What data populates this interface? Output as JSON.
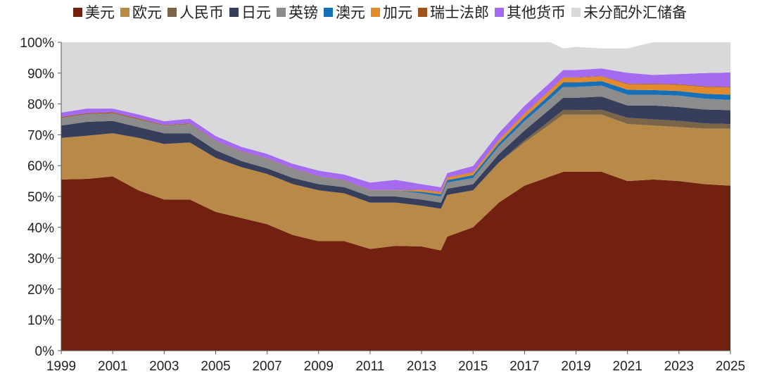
{
  "chart_data": {
    "type": "area",
    "stacked": true,
    "percent_scale": true,
    "title": "",
    "xlabel": "",
    "ylabel": "",
    "ylim": [
      0,
      100
    ],
    "xlim": [
      1999,
      2025
    ],
    "x_ticks": [
      1999,
      2001,
      2003,
      2005,
      2007,
      2009,
      2011,
      2013,
      2015,
      2017,
      2019,
      2021,
      2023,
      2025
    ],
    "x_tick_labels": [
      "1999",
      "2001",
      "2003",
      "2005",
      "2007",
      "2009",
      "2011",
      "2013",
      "2015",
      "2017",
      "2019",
      "2021",
      "2023",
      "2025"
    ],
    "y_ticks": [
      0,
      10,
      20,
      30,
      40,
      50,
      60,
      70,
      80,
      90,
      100
    ],
    "y_tick_labels": [
      "0%",
      "10%",
      "20%",
      "30%",
      "40%",
      "50%",
      "60%",
      "70%",
      "80%",
      "90%",
      "100%"
    ],
    "grid": false,
    "legend_position": "top",
    "x": [
      1999,
      2000,
      2001,
      2002,
      2003,
      2004,
      2005,
      2006,
      2007,
      2008,
      2009,
      2010,
      2011,
      2012,
      2013,
      2013.75,
      2014,
      2015,
      2016,
      2017,
      2018,
      2018.5,
      2019,
      2020,
      2021,
      2022,
      2023,
      2024,
      2025
    ],
    "series": [
      {
        "name": "美元",
        "color": "#722010",
        "values": [
          55.5,
          55.7,
          56.5,
          52.0,
          49.0,
          49.0,
          45.0,
          43.0,
          41.0,
          37.5,
          35.5,
          35.5,
          33.0,
          34.0,
          33.8,
          32.5,
          37.0,
          40.0,
          48.0,
          53.5,
          56.5,
          58.0,
          58.0,
          58.0,
          55.0,
          55.5,
          55.0,
          54.0,
          53.5
        ]
      },
      {
        "name": "欧元",
        "color": "#b98948",
        "values": [
          13.5,
          14.0,
          14.0,
          17.0,
          18.0,
          18.5,
          17.5,
          16.5,
          16.3,
          16.5,
          16.5,
          15.5,
          15.0,
          14.0,
          13.2,
          13.5,
          13.5,
          12.0,
          13.0,
          14.0,
          17.0,
          18.5,
          18.5,
          18.5,
          18.5,
          17.5,
          17.5,
          18.0,
          18.5
        ]
      },
      {
        "name": "人民币",
        "color": "#7a6548",
        "values": [
          0,
          0,
          0,
          0,
          0,
          0,
          0,
          0,
          0,
          0,
          0,
          0,
          0,
          0,
          0,
          0,
          0,
          0,
          0,
          0.7,
          1.2,
          1.5,
          1.5,
          1.6,
          2.0,
          2.0,
          2.0,
          1.7,
          1.5
        ]
      },
      {
        "name": "日元",
        "color": "#363e5c",
        "values": [
          4.0,
          4.5,
          4.0,
          3.5,
          3.5,
          3.0,
          2.5,
          2.0,
          1.8,
          2.0,
          2.0,
          2.0,
          2.0,
          2.0,
          2.0,
          2.0,
          2.0,
          2.0,
          2.7,
          3.2,
          3.7,
          4.0,
          4.0,
          4.3,
          4.0,
          4.5,
          4.5,
          4.5,
          4.5
        ]
      },
      {
        "name": "英镑",
        "color": "#8c8c8c",
        "values": [
          2.5,
          2.5,
          2.5,
          2.5,
          2.5,
          3.0,
          3.0,
          3.0,
          3.2,
          3.0,
          2.5,
          2.2,
          2.0,
          2.0,
          2.0,
          2.0,
          2.0,
          2.0,
          2.5,
          3.0,
          3.3,
          3.5,
          3.5,
          3.5,
          3.5,
          3.5,
          3.7,
          3.5,
          3.3
        ]
      },
      {
        "name": "澳元",
        "color": "#1670b8",
        "values": [
          0,
          0,
          0,
          0,
          0,
          0,
          0,
          0,
          0,
          0,
          0,
          0,
          0,
          0,
          0.5,
          0.7,
          0.8,
          0.9,
          1.0,
          1.2,
          1.4,
          1.5,
          1.5,
          1.5,
          1.6,
          1.5,
          1.5,
          1.6,
          1.7
        ]
      },
      {
        "name": "加元",
        "color": "#e38a2c",
        "values": [
          0,
          0,
          0,
          0,
          0,
          0,
          0,
          0,
          0,
          0,
          0,
          0,
          0,
          0,
          0.6,
          0.7,
          0.8,
          0.9,
          1.0,
          1.2,
          1.4,
          1.5,
          1.5,
          1.5,
          1.8,
          1.8,
          2.0,
          2.2,
          2.3
        ]
      },
      {
        "name": "瑞士法郎",
        "color": "#a0521c",
        "values": [
          0.3,
          0.3,
          0.3,
          0.3,
          0.2,
          0.2,
          0.1,
          0.1,
          0.1,
          0.1,
          0.1,
          0.1,
          0.1,
          0.1,
          0.1,
          0.1,
          0.1,
          0.1,
          0.1,
          0.1,
          0.1,
          0.1,
          0.1,
          0.1,
          0.2,
          0.2,
          0.2,
          0.2,
          0.2
        ]
      },
      {
        "name": "其他货币",
        "color": "#a46bf0",
        "values": [
          1.4,
          1.5,
          1.2,
          1.3,
          1.2,
          1.5,
          1.5,
          1.5,
          1.4,
          1.5,
          1.8,
          1.8,
          2.4,
          3.3,
          1.8,
          1.5,
          1.4,
          2.0,
          2.3,
          2.5,
          2.4,
          2.4,
          2.4,
          2.5,
          3.5,
          2.9,
          3.3,
          4.3,
          4.7
        ]
      },
      {
        "name": "未分配外汇储备",
        "color": "#d9d9dc",
        "values": [
          22.8,
          21.5,
          21.5,
          23.4,
          25.6,
          24.8,
          30.4,
          33.9,
          36.2,
          39.4,
          41.6,
          42.9,
          45.5,
          44.6,
          46.0,
          47.0,
          42.4,
          40.1,
          29.4,
          20.6,
          13.0,
          7.0,
          7.5,
          6.5,
          7.9,
          10.6,
          10.3,
          10.0,
          9.8
        ]
      }
    ]
  }
}
